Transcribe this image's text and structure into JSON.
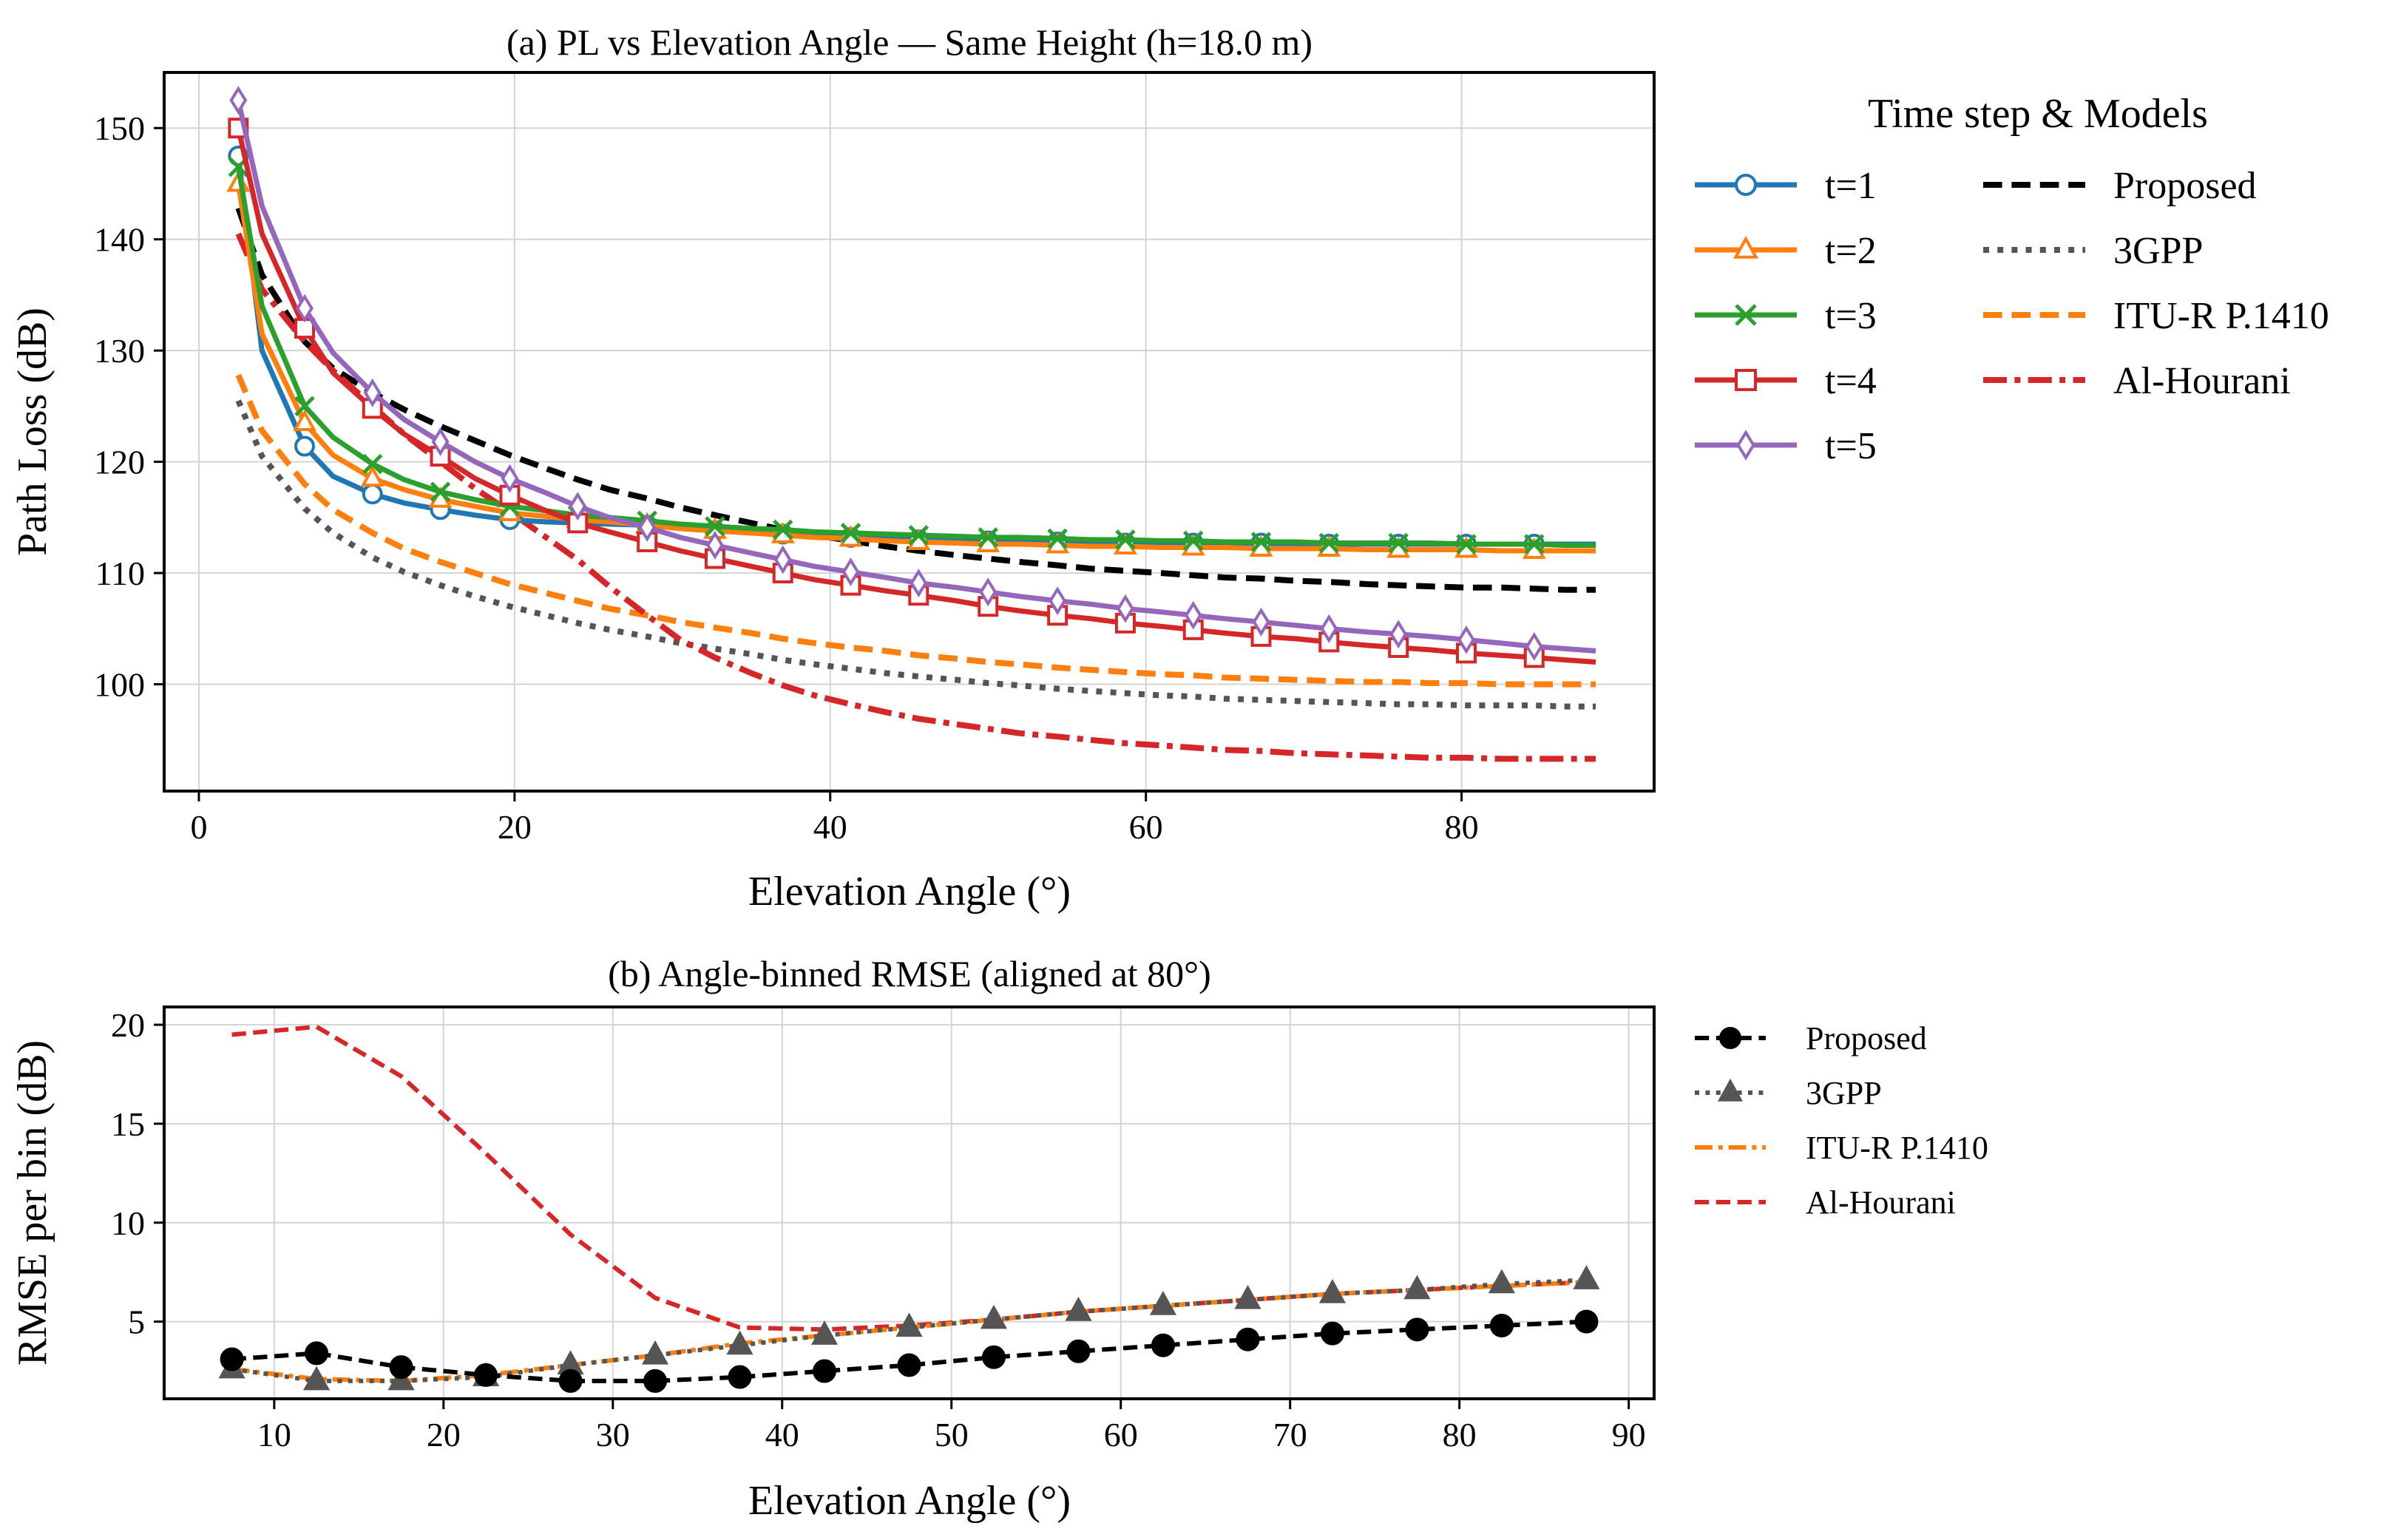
{
  "chart_data": [
    {
      "type": "line",
      "title": "(a) PL vs Elevation Angle — Same Height (h=18.0 m)",
      "xlabel": "Elevation Angle (°)",
      "ylabel": "Path Loss (dB)",
      "xlim": [
        -2.2,
        92.2
      ],
      "ylim": [
        90.4,
        155.0
      ],
      "xticks": [
        0,
        20,
        40,
        60,
        80
      ],
      "xtick_labels": [
        "0",
        "20",
        "40",
        "60",
        "80"
      ],
      "yticks": [
        100,
        110,
        120,
        130,
        140,
        150
      ],
      "ytick_labels": [
        "100",
        "110",
        "120",
        "130",
        "140",
        "150"
      ],
      "grid": true,
      "legend_title": "Time step & Models",
      "legend_position": "outside-right",
      "x": [
        2.5,
        4,
        6.7,
        8.5,
        11,
        13,
        15.3,
        17.5,
        19.7,
        22,
        24,
        26,
        28.4,
        30.5,
        32.7,
        35,
        37,
        39,
        41.3,
        43.5,
        45.6,
        48,
        50,
        52,
        54.4,
        56.5,
        58.7,
        61,
        63,
        65,
        67.3,
        69.5,
        71.6,
        74,
        76,
        78,
        80.3,
        82.5,
        84.6,
        86.5,
        88.5
      ],
      "marker_x": [
        2.5,
        6.7,
        11,
        15.3,
        19.7,
        24,
        28.4,
        32.7,
        37,
        41.3,
        45.6,
        50,
        54.4,
        58.7,
        63,
        67.3,
        71.6,
        76,
        80.3,
        84.6
      ],
      "series": [
        {
          "name": "t=1",
          "color": "#1f77b4",
          "marker": "circle",
          "values": [
            147.5,
            130.0,
            121.4,
            118.7,
            117.1,
            116.3,
            115.7,
            115.2,
            114.8,
            114.6,
            114.5,
            114.4,
            114.3,
            114.0,
            113.8,
            113.6,
            113.5,
            113.3,
            113.2,
            113.1,
            113.0,
            112.9,
            112.9,
            112.8,
            112.8,
            112.8,
            112.7,
            112.7,
            112.7,
            112.7,
            112.7,
            112.6,
            112.6,
            112.6,
            112.6,
            112.6,
            112.6,
            112.6,
            112.6,
            112.6,
            112.6
          ]
        },
        {
          "name": "t=2",
          "color": "#ff7f0e",
          "marker": "triangle",
          "values": [
            145.0,
            131.5,
            123.5,
            120.6,
            118.5,
            117.5,
            116.6,
            116.0,
            115.4,
            115.1,
            114.8,
            114.6,
            114.3,
            114.0,
            113.8,
            113.6,
            113.4,
            113.2,
            113.1,
            112.9,
            112.8,
            112.7,
            112.6,
            112.6,
            112.5,
            112.4,
            112.4,
            112.3,
            112.3,
            112.3,
            112.2,
            112.2,
            112.2,
            112.1,
            112.1,
            112.1,
            112.1,
            112.0,
            112.0,
            112.0,
            112.0
          ]
        },
        {
          "name": "t=3",
          "color": "#2ca02c",
          "marker": "x",
          "values": [
            146.5,
            134.0,
            125.0,
            122.2,
            119.8,
            118.4,
            117.3,
            116.6,
            116.0,
            115.6,
            115.2,
            115.0,
            114.7,
            114.4,
            114.2,
            114.0,
            113.9,
            113.7,
            113.6,
            113.5,
            113.4,
            113.3,
            113.2,
            113.2,
            113.1,
            113.0,
            113.0,
            112.9,
            112.9,
            112.8,
            112.8,
            112.8,
            112.7,
            112.7,
            112.7,
            112.7,
            112.6,
            112.6,
            112.6,
            112.5,
            112.5
          ]
        },
        {
          "name": "t=4",
          "color": "#d62728",
          "marker": "square",
          "values": [
            150.0,
            140.5,
            132.0,
            128.0,
            124.8,
            122.5,
            120.5,
            118.5,
            117.0,
            115.6,
            114.5,
            113.7,
            112.8,
            112.0,
            111.3,
            110.6,
            110.0,
            109.4,
            108.9,
            108.4,
            108.0,
            107.5,
            107.0,
            106.6,
            106.2,
            105.9,
            105.5,
            105.2,
            104.9,
            104.6,
            104.3,
            104.1,
            103.8,
            103.5,
            103.3,
            103.1,
            102.8,
            102.6,
            102.4,
            102.2,
            102.0
          ]
        },
        {
          "name": "t=5",
          "color": "#9467bd",
          "marker": "diamond",
          "values": [
            152.5,
            143.0,
            133.8,
            129.8,
            126.2,
            123.8,
            121.8,
            120.0,
            118.5,
            117.2,
            116.0,
            115.0,
            114.1,
            113.2,
            112.5,
            111.8,
            111.2,
            110.6,
            110.1,
            109.6,
            109.1,
            108.7,
            108.3,
            107.9,
            107.5,
            107.2,
            106.8,
            106.5,
            106.2,
            105.9,
            105.6,
            105.3,
            105.0,
            104.7,
            104.5,
            104.3,
            104.0,
            103.7,
            103.4,
            103.2,
            103.0
          ]
        },
        {
          "name": "Proposed",
          "color": "#000000",
          "dash": "dashed",
          "values": [
            142.8,
            136.8,
            130.8,
            128.4,
            126.2,
            124.7,
            123.2,
            121.9,
            120.6,
            119.4,
            118.4,
            117.5,
            116.7,
            115.9,
            115.2,
            114.5,
            113.9,
            113.4,
            112.9,
            112.4,
            112.0,
            111.6,
            111.3,
            111.0,
            110.7,
            110.4,
            110.2,
            110.0,
            109.8,
            109.6,
            109.5,
            109.3,
            109.2,
            109.0,
            108.9,
            108.8,
            108.7,
            108.7,
            108.6,
            108.5,
            108.5
          ]
        },
        {
          "name": "3GPP",
          "color": "#555555",
          "dash": "dotted",
          "values": [
            125.5,
            120.5,
            115.8,
            113.6,
            111.4,
            110.1,
            108.9,
            107.9,
            107.0,
            106.2,
            105.5,
            104.9,
            104.3,
            103.7,
            103.2,
            102.7,
            102.2,
            101.8,
            101.4,
            101.0,
            100.7,
            100.4,
            100.1,
            99.9,
            99.6,
            99.4,
            99.2,
            99.0,
            98.9,
            98.7,
            98.6,
            98.5,
            98.4,
            98.3,
            98.2,
            98.2,
            98.1,
            98.1,
            98.1,
            98.0,
            98.0
          ]
        },
        {
          "name": "ITU-R P.1410",
          "color": "#ff7f0e",
          "dash": "dashed",
          "values": [
            127.8,
            122.8,
            118.0,
            115.7,
            113.6,
            112.2,
            111.0,
            110.0,
            109.0,
            108.2,
            107.5,
            106.8,
            106.2,
            105.6,
            105.1,
            104.6,
            104.1,
            103.7,
            103.3,
            103.0,
            102.6,
            102.3,
            102.0,
            101.8,
            101.5,
            101.3,
            101.1,
            100.9,
            100.8,
            100.6,
            100.5,
            100.4,
            100.3,
            100.2,
            100.2,
            100.1,
            100.1,
            100.0,
            100.0,
            100.0,
            100.0
          ]
        },
        {
          "name": "Al-Hourani",
          "color": "#d62728",
          "dash": "dashdot",
          "values": [
            140.5,
            135.5,
            130.8,
            128.2,
            125.0,
            122.5,
            120.0,
            117.6,
            115.5,
            113.2,
            111.2,
            108.8,
            106.2,
            104.0,
            102.4,
            101.0,
            99.9,
            99.0,
            98.2,
            97.5,
            96.9,
            96.4,
            96.0,
            95.6,
            95.3,
            95.0,
            94.7,
            94.5,
            94.3,
            94.1,
            94.0,
            93.8,
            93.7,
            93.6,
            93.5,
            93.4,
            93.4,
            93.3,
            93.3,
            93.3,
            93.3
          ]
        }
      ]
    },
    {
      "type": "line",
      "title": "(b) Angle-binned RMSE (aligned at 80°)",
      "xlabel": "Elevation Angle (°)",
      "ylabel": "RMSE per bin (dB)",
      "xlim": [
        3.5,
        91.5
      ],
      "ylim": [
        1.1,
        20.9
      ],
      "xticks": [
        10,
        20,
        30,
        40,
        50,
        60,
        70,
        80,
        90
      ],
      "xtick_labels": [
        "10",
        "20",
        "30",
        "40",
        "50",
        "60",
        "70",
        "80",
        "90"
      ],
      "yticks": [
        5,
        10,
        15,
        20
      ],
      "ytick_labels": [
        "5",
        "10",
        "15",
        "20"
      ],
      "grid": true,
      "legend_position": "outside-right",
      "x": [
        7.5,
        12.5,
        17.5,
        22.5,
        27.5,
        32.5,
        37.5,
        42.5,
        47.5,
        52.5,
        57.5,
        62.5,
        67.5,
        72.5,
        77.5,
        82.5,
        87.5
      ],
      "series": [
        {
          "name": "Proposed",
          "color": "#000000",
          "dash": "dashed",
          "marker": "circle",
          "values": [
            3.1,
            3.4,
            2.7,
            2.3,
            2.0,
            2.0,
            2.2,
            2.5,
            2.8,
            3.2,
            3.5,
            3.8,
            4.1,
            4.4,
            4.6,
            4.8,
            5.0
          ]
        },
        {
          "name": "3GPP",
          "color": "#555555",
          "dash": "dotted",
          "marker": "triangle",
          "values": [
            2.6,
            2.0,
            2.0,
            2.2,
            2.8,
            3.3,
            3.8,
            4.3,
            4.7,
            5.1,
            5.5,
            5.8,
            6.1,
            6.4,
            6.6,
            6.9,
            7.1
          ]
        },
        {
          "name": "ITU-R P.1410",
          "color": "#ff7f0e",
          "dash": "dashdot",
          "values": [
            2.6,
            2.1,
            2.0,
            2.3,
            2.8,
            3.3,
            3.9,
            4.3,
            4.7,
            5.1,
            5.5,
            5.8,
            6.1,
            6.4,
            6.6,
            6.8,
            7.0
          ]
        },
        {
          "name": "Al-Hourani",
          "color": "#d62728",
          "dash": "dashed",
          "values": [
            19.5,
            19.9,
            17.4,
            13.5,
            9.4,
            6.2,
            4.7,
            4.6,
            4.8,
            5.1,
            5.5,
            5.8,
            6.1,
            6.4,
            6.6,
            6.8,
            7.0
          ]
        }
      ]
    }
  ]
}
